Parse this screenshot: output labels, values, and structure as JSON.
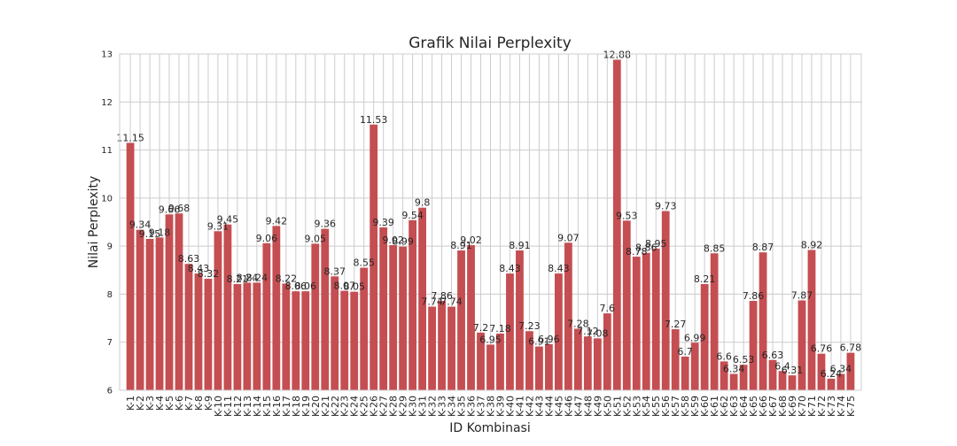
{
  "chart_data": {
    "type": "bar",
    "title": "Grafik Nilai Perplexity",
    "xlabel": "ID Kombinasi",
    "ylabel": "Nilai Perplexity",
    "ylim": [
      6,
      13
    ],
    "yticks": [
      "6",
      "7",
      "8",
      "9",
      "10",
      "11",
      "12",
      "13"
    ],
    "grid": true,
    "bar_color": "#c44e52",
    "categories": [
      "K-1",
      "K-2",
      "K-3",
      "K-4",
      "K-5",
      "K-6",
      "K-7",
      "K-8",
      "K-9",
      "K-10",
      "K-11",
      "K-12",
      "K-13",
      "K-14",
      "K-15",
      "K-16",
      "K-17",
      "K-18",
      "K-19",
      "K-20",
      "K-21",
      "K-22",
      "K-23",
      "K-24",
      "K-25",
      "K-26",
      "K-27",
      "K-28",
      "K-29",
      "K-30",
      "K-31",
      "K-32",
      "K-33",
      "K-34",
      "K-35",
      "K-36",
      "K-37",
      "K-38",
      "K-39",
      "K-40",
      "K-41",
      "K-42",
      "K-43",
      "K-44",
      "K-45",
      "K-46",
      "K-47",
      "K-48",
      "K-49",
      "K-50",
      "K-51",
      "K-52",
      "K-53",
      "K-54",
      "K-55",
      "K-56",
      "K-57",
      "K-58",
      "K-59",
      "K-60",
      "K-61",
      "K-62",
      "K-63",
      "K-64",
      "K-65",
      "K-66",
      "K-67",
      "K-68",
      "K-69",
      "K-70",
      "K-71",
      "K-72",
      "K-73",
      "K-74",
      "K-75"
    ],
    "values": [
      11.15,
      9.34,
      9.15,
      9.18,
      9.66,
      9.68,
      8.63,
      8.43,
      8.32,
      9.31,
      9.45,
      8.21,
      8.24,
      8.24,
      9.06,
      9.42,
      8.22,
      8.06,
      8.06,
      9.05,
      9.36,
      8.37,
      8.07,
      8.05,
      8.55,
      11.53,
      9.39,
      9.02,
      8.99,
      9.54,
      9.8,
      7.74,
      7.86,
      7.74,
      8.91,
      9.02,
      7.2,
      6.95,
      7.18,
      8.43,
      8.91,
      7.23,
      6.91,
      6.96,
      8.43,
      9.07,
      7.28,
      7.12,
      7.08,
      7.6,
      12.88,
      9.53,
      8.78,
      8.86,
      8.95,
      9.73,
      7.27,
      6.7,
      6.99,
      8.21,
      8.85,
      6.6,
      6.34,
      6.53,
      7.86,
      8.87,
      6.63,
      6.4,
      6.31,
      7.87,
      8.92,
      6.76,
      6.24,
      6.34,
      6.78
    ],
    "data_labels": [
      "11.15",
      "9.34",
      "9.15",
      "9.18",
      "9.66",
      "9.68",
      "8.63",
      "8.43",
      "8.32",
      "9.31",
      "9.45",
      "8.21",
      "8.24",
      "8.24",
      "9.06",
      "9.42",
      "8.22",
      "8.06",
      "8.06",
      "9.05",
      "9.36",
      "8.37",
      "8.07",
      "8.05",
      "8.55",
      "11.53",
      "9.39",
      "9.02",
      "8.99",
      "9.54",
      "9.8",
      "7.74",
      "7.86",
      "7.74",
      "8.91",
      "9.02",
      "7.2",
      "6.95",
      "7.18",
      "8.43",
      "8.91",
      "7.23",
      "6.91",
      "6.96",
      "8.43",
      "9.07",
      "7.28",
      "7.12",
      "7.08",
      "7.6",
      "12.88",
      "9.53",
      "8.78",
      "8.86",
      "8.95",
      "9.73",
      "7.27",
      "6.7",
      "6.99",
      "8.21",
      "8.85",
      "6.6",
      "6.34",
      "6.53",
      "7.86",
      "8.87",
      "6.63",
      "6.4",
      "6.31",
      "7.87",
      "8.92",
      "6.76",
      "6.24",
      "6.34",
      "6.78"
    ]
  }
}
